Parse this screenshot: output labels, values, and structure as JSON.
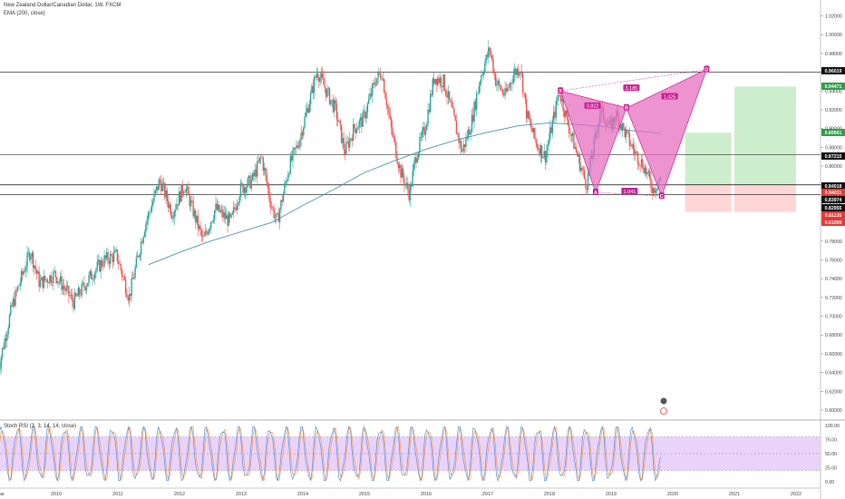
{
  "header": {
    "symbol": "New Zealand Dollar/Canadian Dollar, 1W, FXCM",
    "indicator": "EMA (200, close)"
  },
  "oscillator": {
    "label": "Stoch RSI (3, 3, 14, 14, close)"
  },
  "colors": {
    "bull": "#26a69a",
    "bear": "#ef5350",
    "ema": "#4a90b8",
    "pattern_fill": "#e56fc0",
    "pattern_line": "#c81e93",
    "target_zone": "#c8ecc8",
    "stop_zone": "#ffd2d2",
    "k_line": "#5b8fd9",
    "d_line": "#f29a4a",
    "osc_band": "#e3c8fa"
  },
  "badges": [
    {
      "label": "0.96019",
      "bg": "#111111"
    },
    {
      "label": "0.94471",
      "bg": "#2e9e4a"
    },
    {
      "label": "0.89561",
      "bg": "#2e9e4a"
    },
    {
      "label": "0.87215",
      "bg": "#111111"
    },
    {
      "label": "0.84018",
      "bg": "#111111"
    },
    {
      "label": "0.84011",
      "bg": "#e53935"
    },
    {
      "label": "0.83974",
      "bg": "#111111"
    },
    {
      "label": "0.82955",
      "bg": "#111111"
    },
    {
      "label": "0.81135",
      "bg": "#e53935"
    },
    {
      "label": "0.81099",
      "bg": "#e53935"
    }
  ],
  "chart_data": [
    {
      "type": "candlestick",
      "x_range": [
        "2009",
        "2022"
      ],
      "ylim": [
        0.58,
        1.03
      ],
      "y_ticks": [
        "1.02000",
        "1.00000",
        "0.98000",
        "0.96000",
        "0.94000",
        "0.92000",
        "0.90000",
        "0.88000",
        "0.86000",
        "0.84000",
        "0.82000",
        "0.80000",
        "0.78000",
        "0.76000",
        "0.74000",
        "0.72000",
        "0.70000",
        "0.68000",
        "0.66000",
        "0.64000",
        "0.62000",
        "0.60000"
      ],
      "x_ticks": [
        {
          "label": "ar",
          "year": 2009.0
        },
        {
          "label": "2010",
          "year": 2010.0
        },
        {
          "label": "2011",
          "year": 2011.0
        },
        {
          "label": "2012",
          "year": 2012.0
        },
        {
          "label": "2013",
          "year": 2013.0
        },
        {
          "label": "2014",
          "year": 2014.0
        },
        {
          "label": "2015",
          "year": 2015.0
        },
        {
          "label": "2016",
          "year": 2016.0
        },
        {
          "label": "2017",
          "year": 2017.0
        },
        {
          "label": "2018",
          "year": 2018.0
        },
        {
          "label": "2019",
          "year": 2019.0
        },
        {
          "label": "2020",
          "year": 2020.0
        },
        {
          "label": "2021",
          "year": 2021.0
        },
        {
          "label": "2022",
          "year": 2022.0
        }
      ],
      "price_path": [
        [
          2009.05,
          0.635
        ],
        [
          2009.3,
          0.71
        ],
        [
          2009.6,
          0.77
        ],
        [
          2009.75,
          0.735
        ],
        [
          2010.0,
          0.745
        ],
        [
          2010.3,
          0.715
        ],
        [
          2010.6,
          0.745
        ],
        [
          2010.8,
          0.76
        ],
        [
          2011.0,
          0.765
        ],
        [
          2011.2,
          0.72
        ],
        [
          2011.45,
          0.795
        ],
        [
          2011.7,
          0.845
        ],
        [
          2011.9,
          0.81
        ],
        [
          2012.1,
          0.84
        ],
        [
          2012.4,
          0.78
        ],
        [
          2012.6,
          0.815
        ],
        [
          2012.85,
          0.8
        ],
        [
          2013.0,
          0.835
        ],
        [
          2013.2,
          0.845
        ],
        [
          2013.35,
          0.87
        ],
        [
          2013.5,
          0.82
        ],
        [
          2013.6,
          0.8
        ],
        [
          2013.8,
          0.86
        ],
        [
          2013.95,
          0.885
        ],
        [
          2014.15,
          0.935
        ],
        [
          2014.25,
          0.962
        ],
        [
          2014.4,
          0.94
        ],
        [
          2014.55,
          0.92
        ],
        [
          2014.7,
          0.875
        ],
        [
          2014.85,
          0.9
        ],
        [
          2015.0,
          0.91
        ],
        [
          2015.2,
          0.952
        ],
        [
          2015.3,
          0.96
        ],
        [
          2015.45,
          0.9
        ],
        [
          2015.6,
          0.855
        ],
        [
          2015.75,
          0.83
        ],
        [
          2015.85,
          0.87
        ],
        [
          2016.0,
          0.9
        ],
        [
          2016.15,
          0.955
        ],
        [
          2016.3,
          0.95
        ],
        [
          2016.45,
          0.915
        ],
        [
          2016.6,
          0.875
        ],
        [
          2016.75,
          0.905
        ],
        [
          2016.9,
          0.955
        ],
        [
          2017.05,
          0.985
        ],
        [
          2017.15,
          0.95
        ],
        [
          2017.3,
          0.935
        ],
        [
          2017.45,
          0.96
        ],
        [
          2017.55,
          0.965
        ],
        [
          2017.65,
          0.915
        ],
        [
          2017.8,
          0.885
        ],
        [
          2017.95,
          0.87
        ],
        [
          2018.05,
          0.9
        ],
        [
          2018.18,
          0.94
        ],
        [
          2018.32,
          0.905
        ],
        [
          2018.5,
          0.865
        ],
        [
          2018.62,
          0.84
        ],
        [
          2018.72,
          0.875
        ],
        [
          2018.85,
          0.92
        ],
        [
          2019.0,
          0.9
        ],
        [
          2019.1,
          0.915
        ],
        [
          2019.25,
          0.895
        ],
        [
          2019.4,
          0.875
        ],
        [
          2019.55,
          0.86
        ],
        [
          2019.7,
          0.835
        ],
        [
          2019.8,
          0.845
        ]
      ],
      "ema_200": [
        [
          2011.5,
          0.755
        ],
        [
          2012.0,
          0.768
        ],
        [
          2012.5,
          0.78
        ],
        [
          2013.0,
          0.79
        ],
        [
          2013.5,
          0.8
        ],
        [
          2014.0,
          0.818
        ],
        [
          2014.5,
          0.835
        ],
        [
          2015.0,
          0.853
        ],
        [
          2015.5,
          0.866
        ],
        [
          2016.0,
          0.878
        ],
        [
          2016.5,
          0.888
        ],
        [
          2017.0,
          0.896
        ],
        [
          2017.5,
          0.903
        ],
        [
          2018.0,
          0.906
        ],
        [
          2018.5,
          0.904
        ],
        [
          2018.9,
          0.902
        ],
        [
          2019.3,
          0.898
        ],
        [
          2019.8,
          0.895
        ]
      ],
      "horizontal_levels": [
        0.96019,
        0.87215,
        0.84018,
        0.82955
      ],
      "harmonic_pattern": {
        "points": [
          {
            "label": "X",
            "year": 2018.18,
            "price": 0.94
          },
          {
            "label": "A",
            "year": 2018.75,
            "price": 0.832
          },
          {
            "label": "B",
            "year": 2019.25,
            "price": 0.922
          },
          {
            "label": "C",
            "year": 2019.82,
            "price": 0.828
          },
          {
            "label": "D",
            "year": 2020.55,
            "price": 0.963
          }
        ],
        "ratios": [
          {
            "label": "0.822",
            "year": 2018.7,
            "price": 0.924
          },
          {
            "label": "3.185",
            "year": 2019.33,
            "price": 0.943
          },
          {
            "label": "1.425",
            "year": 2019.95,
            "price": 0.934
          },
          {
            "label": "1.041",
            "year": 2019.3,
            "price": 0.833
          }
        ]
      },
      "position_zones": [
        {
          "x_from": 2020.2,
          "x_to": 2020.95,
          "entry": 0.84,
          "target": 0.8956,
          "stop": 0.811
        },
        {
          "x_from": 2021.0,
          "x_to": 2022.0,
          "entry": 0.84,
          "target": 0.9447,
          "stop": 0.811
        }
      ]
    },
    {
      "type": "line",
      "name": "Stoch RSI (3, 3, 14, 14, close)",
      "ylim": [
        -5,
        105
      ],
      "y_ticks": [
        "100.00",
        "75.00",
        "50.00",
        "25.00",
        "0.00"
      ],
      "band": [
        20,
        80
      ],
      "cycles": 42
    }
  ]
}
